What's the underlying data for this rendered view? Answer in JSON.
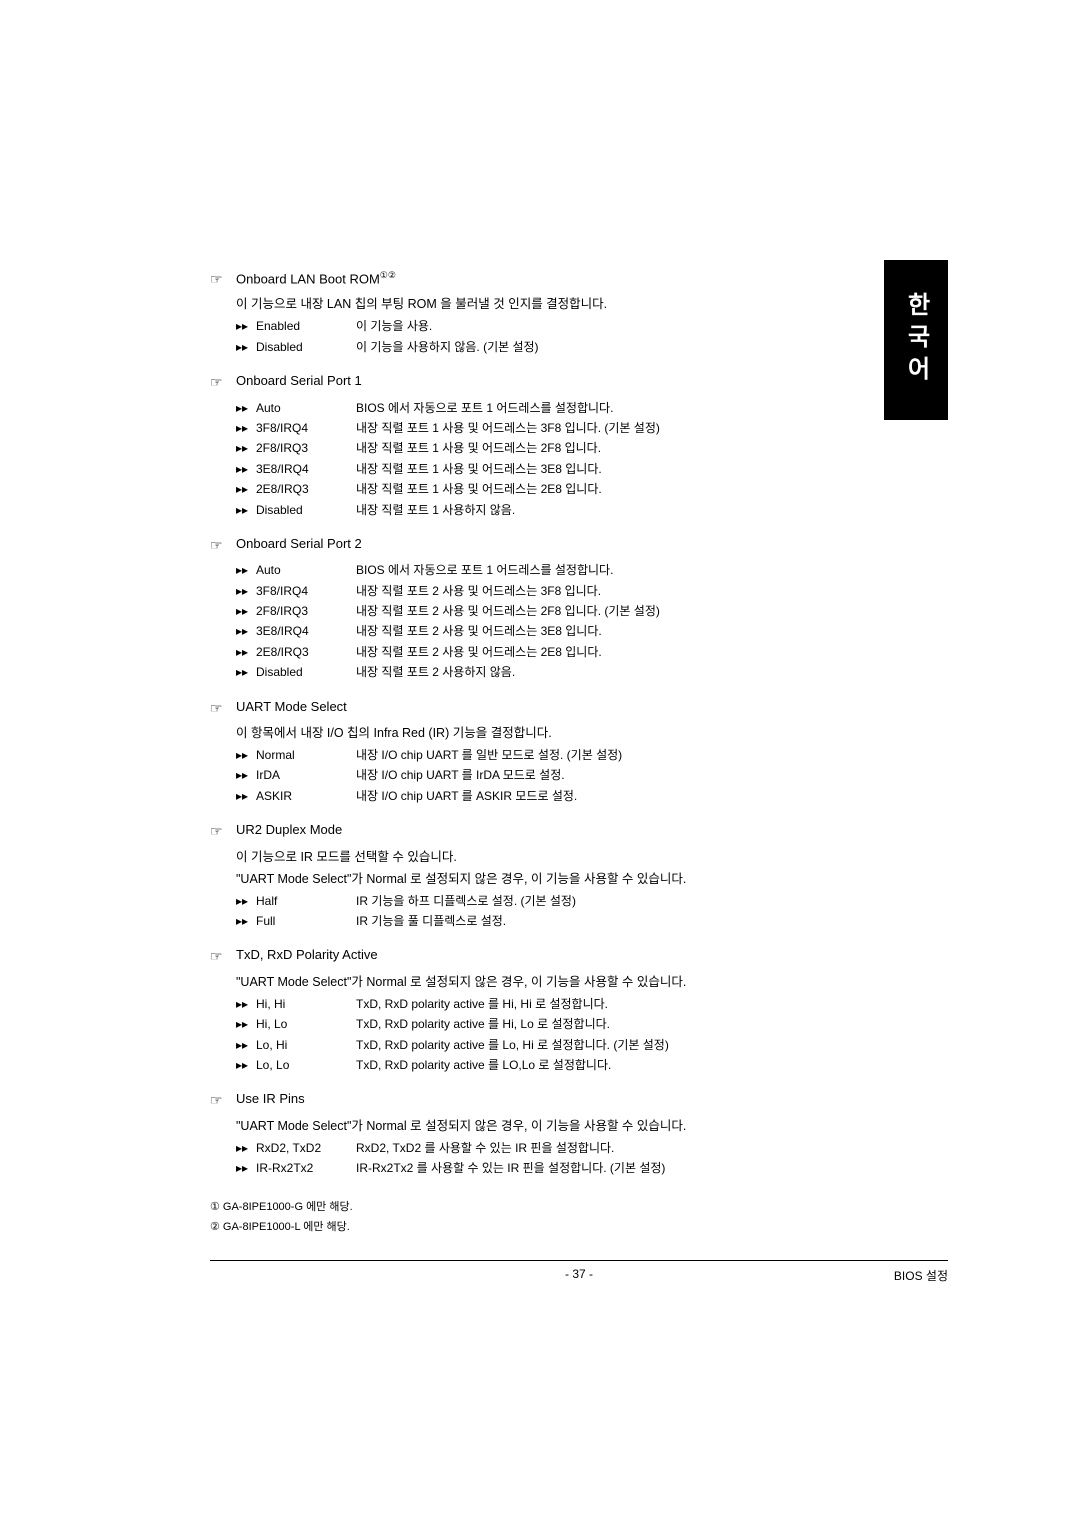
{
  "sidebar": {
    "label": "한국어"
  },
  "sections": [
    {
      "title": "Onboard LAN Boot ROM",
      "superscript": "①②",
      "desc": "이 기능으로 내장 LAN 칩의 부팅 ROM 을 불러낼 것 인지를 결정합니다.",
      "options": [
        {
          "name": "Enabled",
          "desc": "이 기능을 사용."
        },
        {
          "name": "Disabled",
          "desc": "이 기능을 사용하지 않음. (기본 설정)"
        }
      ]
    },
    {
      "title": "Onboard Serial Port 1",
      "superscript": "",
      "desc": "",
      "options": [
        {
          "name": "Auto",
          "desc": "BIOS 에서 자동으로 포트 1 어드레스를 설정합니다."
        },
        {
          "name": "3F8/IRQ4",
          "desc": "내장 직렬 포트 1 사용 및 어드레스는 3F8 입니다. (기본 설정)"
        },
        {
          "name": "2F8/IRQ3",
          "desc": "내장 직렬 포트 1 사용 및 어드레스는 2F8 입니다."
        },
        {
          "name": "3E8/IRQ4",
          "desc": "내장 직렬 포트 1 사용 및 어드레스는 3E8 입니다."
        },
        {
          "name": "2E8/IRQ3",
          "desc": "내장 직렬 포트 1 사용 및 어드레스는 2E8 입니다."
        },
        {
          "name": "Disabled",
          "desc": "내장 직렬 포트 1 사용하지 않음."
        }
      ]
    },
    {
      "title": "Onboard Serial Port 2",
      "superscript": "",
      "desc": "",
      "options": [
        {
          "name": "Auto",
          "desc": "BIOS 에서 자동으로 포트 1 어드레스를 설정합니다."
        },
        {
          "name": "3F8/IRQ4",
          "desc": "내장 직렬 포트 2 사용 및 어드레스는 3F8 입니다."
        },
        {
          "name": "2F8/IRQ3",
          "desc": "내장 직렬 포트 2 사용 및 어드레스는 2F8 입니다. (기본 설정)"
        },
        {
          "name": "3E8/IRQ4",
          "desc": "내장 직렬 포트 2 사용 및 어드레스는 3E8 입니다."
        },
        {
          "name": "2E8/IRQ3",
          "desc": "내장 직렬 포트 2 사용 및 어드레스는 2E8 입니다."
        },
        {
          "name": "Disabled",
          "desc": "내장 직렬 포트 2 사용하지 않음."
        }
      ]
    },
    {
      "title": "UART Mode Select",
      "superscript": "",
      "desc": "이 항목에서 내장 I/O 칩의 Infra Red (IR) 기능을 결정합니다.",
      "options": [
        {
          "name": "Normal",
          "desc": "내장 I/O chip UART 를 일반 모드로 설정. (기본 설정)"
        },
        {
          "name": "IrDA",
          "desc": "내장 I/O chip UART 를 IrDA 모드로 설정."
        },
        {
          "name": "ASKIR",
          "desc": "내장 I/O chip UART 를 ASKIR 모드로 설정."
        }
      ]
    },
    {
      "title": "UR2 Duplex Mode",
      "superscript": "",
      "desc": "이 기능으로 IR 모드를 선택할 수 있습니다.",
      "desc2": "\"UART Mode Select\"가 Normal 로 설정되지 않은 경우, 이 기능을 사용할 수 있습니다.",
      "options": [
        {
          "name": "Half",
          "desc": "IR 기능을 하프 디플렉스로 설정. (기본 설정)"
        },
        {
          "name": "Full",
          "desc": "IR 기능을 풀 디플렉스로 설정."
        }
      ]
    },
    {
      "title": "TxD, RxD Polarity Active",
      "superscript": "",
      "desc": "\"UART Mode Select\"가 Normal 로 설정되지 않은 경우, 이 기능을 사용할 수 있습니다.",
      "options": [
        {
          "name": "Hi, Hi",
          "desc": "TxD, RxD polarity active 를 Hi, Hi 로 설정합니다."
        },
        {
          "name": "Hi, Lo",
          "desc": "TxD, RxD polarity active 를 Hi, Lo 로 설정합니다."
        },
        {
          "name": "Lo, Hi",
          "desc": "TxD, RxD polarity active 를 Lo, Hi 로 설정합니다. (기본 설정)"
        },
        {
          "name": "Lo, Lo",
          "desc": "TxD, RxD polarity active 를 LO,Lo 로 설정합니다."
        }
      ]
    },
    {
      "title": "Use IR Pins",
      "superscript": "",
      "desc": "\"UART Mode Select\"가 Normal 로 설정되지 않은 경우, 이 기능을 사용할 수 있습니다.",
      "options": [
        {
          "name": "RxD2, TxD2",
          "desc": "RxD2, TxD2 를 사용할 수 있는 IR 핀을 설정합니다."
        },
        {
          "name": "IR-Rx2Tx2",
          "desc": "IR-Rx2Tx2 를 사용할 수 있는 IR 핀을 설정합니다. (기본 설정)"
        }
      ]
    }
  ],
  "footnotes": [
    {
      "mark": "①",
      "text": "GA-8IPE1000-G 에만 해당."
    },
    {
      "mark": "②",
      "text": "GA-8IPE1000-L 에만 해당."
    }
  ],
  "footer": {
    "page": "- 37 -",
    "right": "BIOS 설정"
  }
}
